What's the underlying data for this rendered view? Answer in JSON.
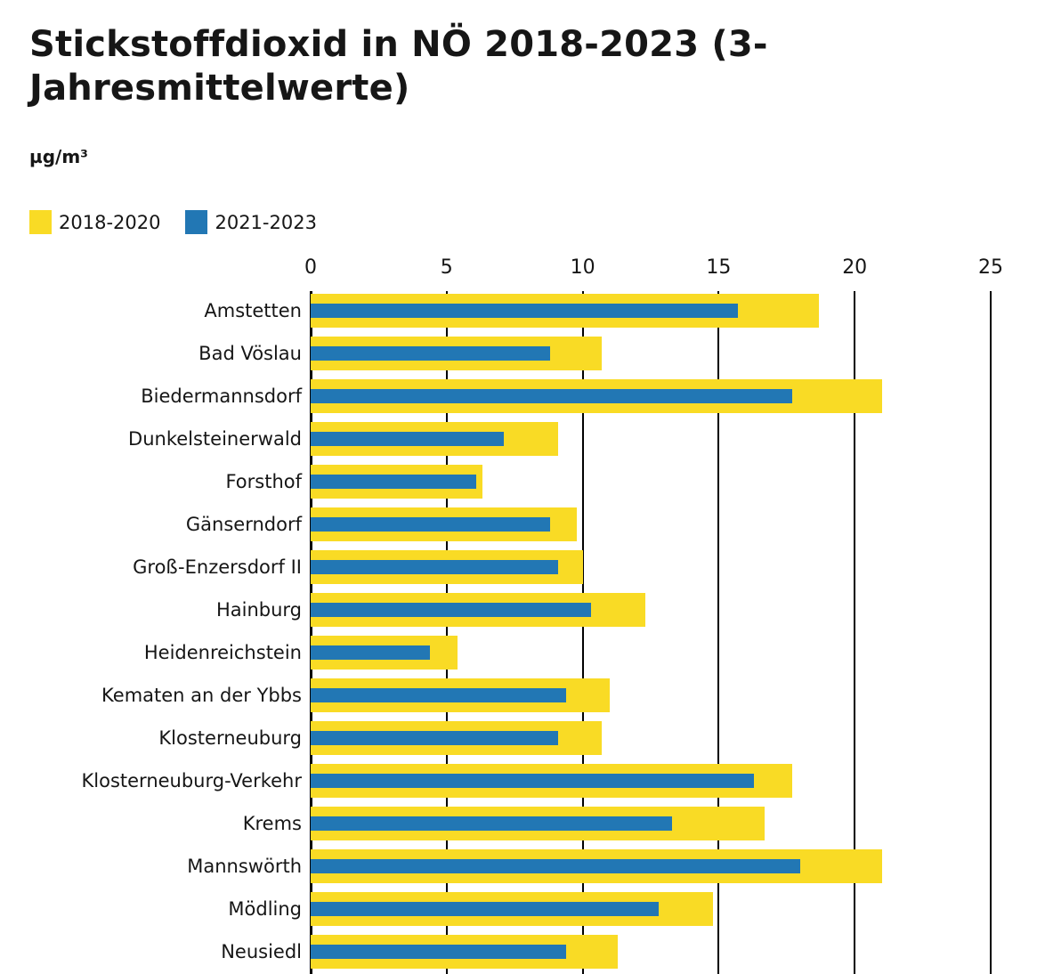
{
  "header": {
    "title": "Stickstoffdioxid in NÖ 2018-2023 (3-Jahresmittelwerte)",
    "unit": "µg/m³"
  },
  "colors": {
    "series_2018_2020": "#F9DB25",
    "series_2021_2023": "#2277B4",
    "axis": "#000000",
    "text": "#161616",
    "background": "#ffffff"
  },
  "chart_data": {
    "type": "bar",
    "orientation": "horizontal",
    "title": "Stickstoffdioxid in NÖ 2018-2023 (3-Jahresmittelwerte)",
    "xlabel": "µg/m³",
    "ylabel": "",
    "xlim": [
      0,
      25
    ],
    "x_ticks": [
      "0",
      "5",
      "10",
      "15",
      "20",
      "25"
    ],
    "x_tick_values": [
      0,
      5,
      10,
      15,
      20,
      25
    ],
    "grid": "vertical",
    "legend_position": "top-left",
    "categories": [
      "Amstetten",
      "Bad Vöslau",
      "Biedermannsdorf",
      "Dunkelsteinerwald",
      "Forsthof",
      "Gänserndorf",
      "Groß-Enzersdorf II",
      "Hainburg",
      "Heidenreichstein",
      "Kematen an der Ybbs",
      "Klosterneuburg",
      "Klosterneuburg-Verkehr",
      "Krems",
      "Mannswörth",
      "Mödling",
      "Neusiedl"
    ],
    "series": [
      {
        "name": "2018-2020",
        "color": "#F9DB25",
        "values": [
          18.7,
          10.7,
          21.0,
          9.1,
          6.3,
          9.8,
          10.0,
          12.3,
          5.4,
          11.0,
          10.7,
          17.7,
          16.7,
          21.0,
          14.8,
          11.3
        ]
      },
      {
        "name": "2021-2023",
        "color": "#2277B4",
        "values": [
          15.7,
          8.8,
          17.7,
          7.1,
          6.1,
          8.8,
          9.1,
          10.3,
          4.4,
          9.4,
          9.1,
          16.3,
          13.3,
          18.0,
          12.8,
          9.4
        ]
      }
    ]
  }
}
